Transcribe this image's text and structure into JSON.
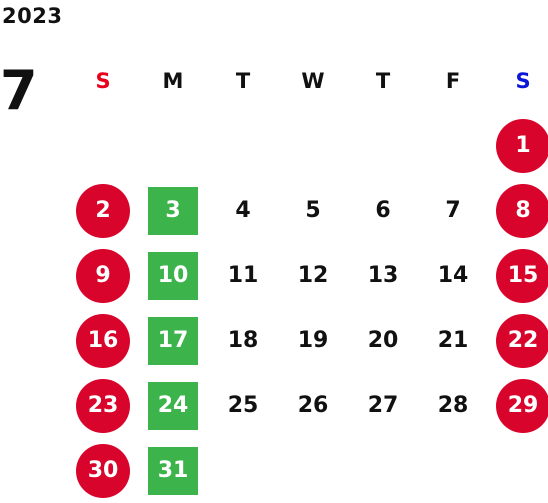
{
  "year": "2023",
  "month": "7",
  "weekdays": [
    "S",
    "M",
    "T",
    "W",
    "T",
    "F",
    "S"
  ],
  "weekday_colors": [
    "#e8001c",
    "#111111",
    "#111111",
    "#111111",
    "#111111",
    "#111111",
    "#0a17d6"
  ],
  "colors": {
    "holiday_circle": "#d9042b",
    "highlight_square": "#3cb44b",
    "text": "#111111"
  },
  "first_weekday_index": 6,
  "days": [
    {
      "label": "1",
      "style": "red"
    },
    {
      "label": "2",
      "style": "red"
    },
    {
      "label": "3",
      "style": "green"
    },
    {
      "label": "4",
      "style": "plain"
    },
    {
      "label": "5",
      "style": "plain"
    },
    {
      "label": "6",
      "style": "plain"
    },
    {
      "label": "7",
      "style": "plain"
    },
    {
      "label": "8",
      "style": "red"
    },
    {
      "label": "9",
      "style": "red"
    },
    {
      "label": "10",
      "style": "green"
    },
    {
      "label": "11",
      "style": "plain"
    },
    {
      "label": "12",
      "style": "plain"
    },
    {
      "label": "13",
      "style": "plain"
    },
    {
      "label": "14",
      "style": "plain"
    },
    {
      "label": "15",
      "style": "red"
    },
    {
      "label": "16",
      "style": "red"
    },
    {
      "label": "17",
      "style": "green"
    },
    {
      "label": "18",
      "style": "plain"
    },
    {
      "label": "19",
      "style": "plain"
    },
    {
      "label": "20",
      "style": "plain"
    },
    {
      "label": "21",
      "style": "plain"
    },
    {
      "label": "22",
      "style": "red"
    },
    {
      "label": "23",
      "style": "red"
    },
    {
      "label": "24",
      "style": "green"
    },
    {
      "label": "25",
      "style": "plain"
    },
    {
      "label": "26",
      "style": "plain"
    },
    {
      "label": "27",
      "style": "plain"
    },
    {
      "label": "28",
      "style": "plain"
    },
    {
      "label": "29",
      "style": "red"
    },
    {
      "label": "30",
      "style": "red"
    },
    {
      "label": "31",
      "style": "green"
    }
  ]
}
